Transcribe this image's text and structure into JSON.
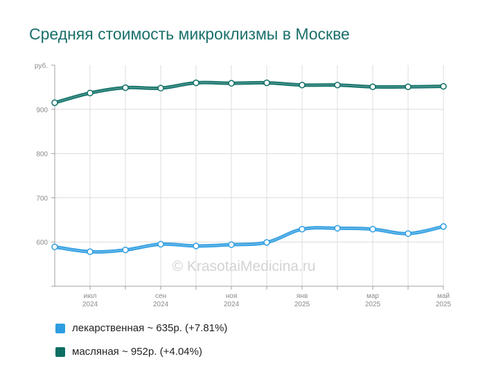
{
  "title": "Средняя стоимость микроклизмы в Москве",
  "watermark": "© KrasotaiMedicina.ru",
  "legend": [
    {
      "label": "лекарственная ~ 635р. (+7.81%)",
      "color": "#2d9de0"
    },
    {
      "label": "масляная ~ 952р. (+4.04%)",
      "color": "#0b6e64"
    }
  ],
  "chart_data": {
    "type": "line",
    "ylabel": "руб.",
    "ylim": [
      500,
      1000
    ],
    "yticks": [
      600,
      700,
      800,
      900
    ],
    "x_labels": [
      {
        "month": "июл",
        "year": "2024",
        "index": 1
      },
      {
        "month": "сен",
        "year": "2024",
        "index": 3
      },
      {
        "month": "ноя",
        "year": "2024",
        "index": 5
      },
      {
        "month": "янв",
        "year": "2025",
        "index": 7
      },
      {
        "month": "мар",
        "year": "2025",
        "index": 9
      },
      {
        "month": "май",
        "year": "2025",
        "index": 11
      }
    ],
    "categories": [
      "2024-06",
      "2024-07",
      "2024-08",
      "2024-09",
      "2024-10",
      "2024-11",
      "2024-12",
      "2025-01",
      "2025-02",
      "2025-03",
      "2025-04",
      "2025-05"
    ],
    "series": [
      {
        "name": "лекарственная",
        "color": "#2d9de0",
        "values": [
          589,
          578,
          582,
          595,
          591,
          594,
          599,
          629,
          631,
          629,
          619,
          635
        ]
      },
      {
        "name": "масляная",
        "color": "#0b6e64",
        "values": [
          915,
          937,
          949,
          948,
          960,
          959,
          960,
          955,
          955,
          951,
          951,
          952
        ]
      }
    ]
  }
}
